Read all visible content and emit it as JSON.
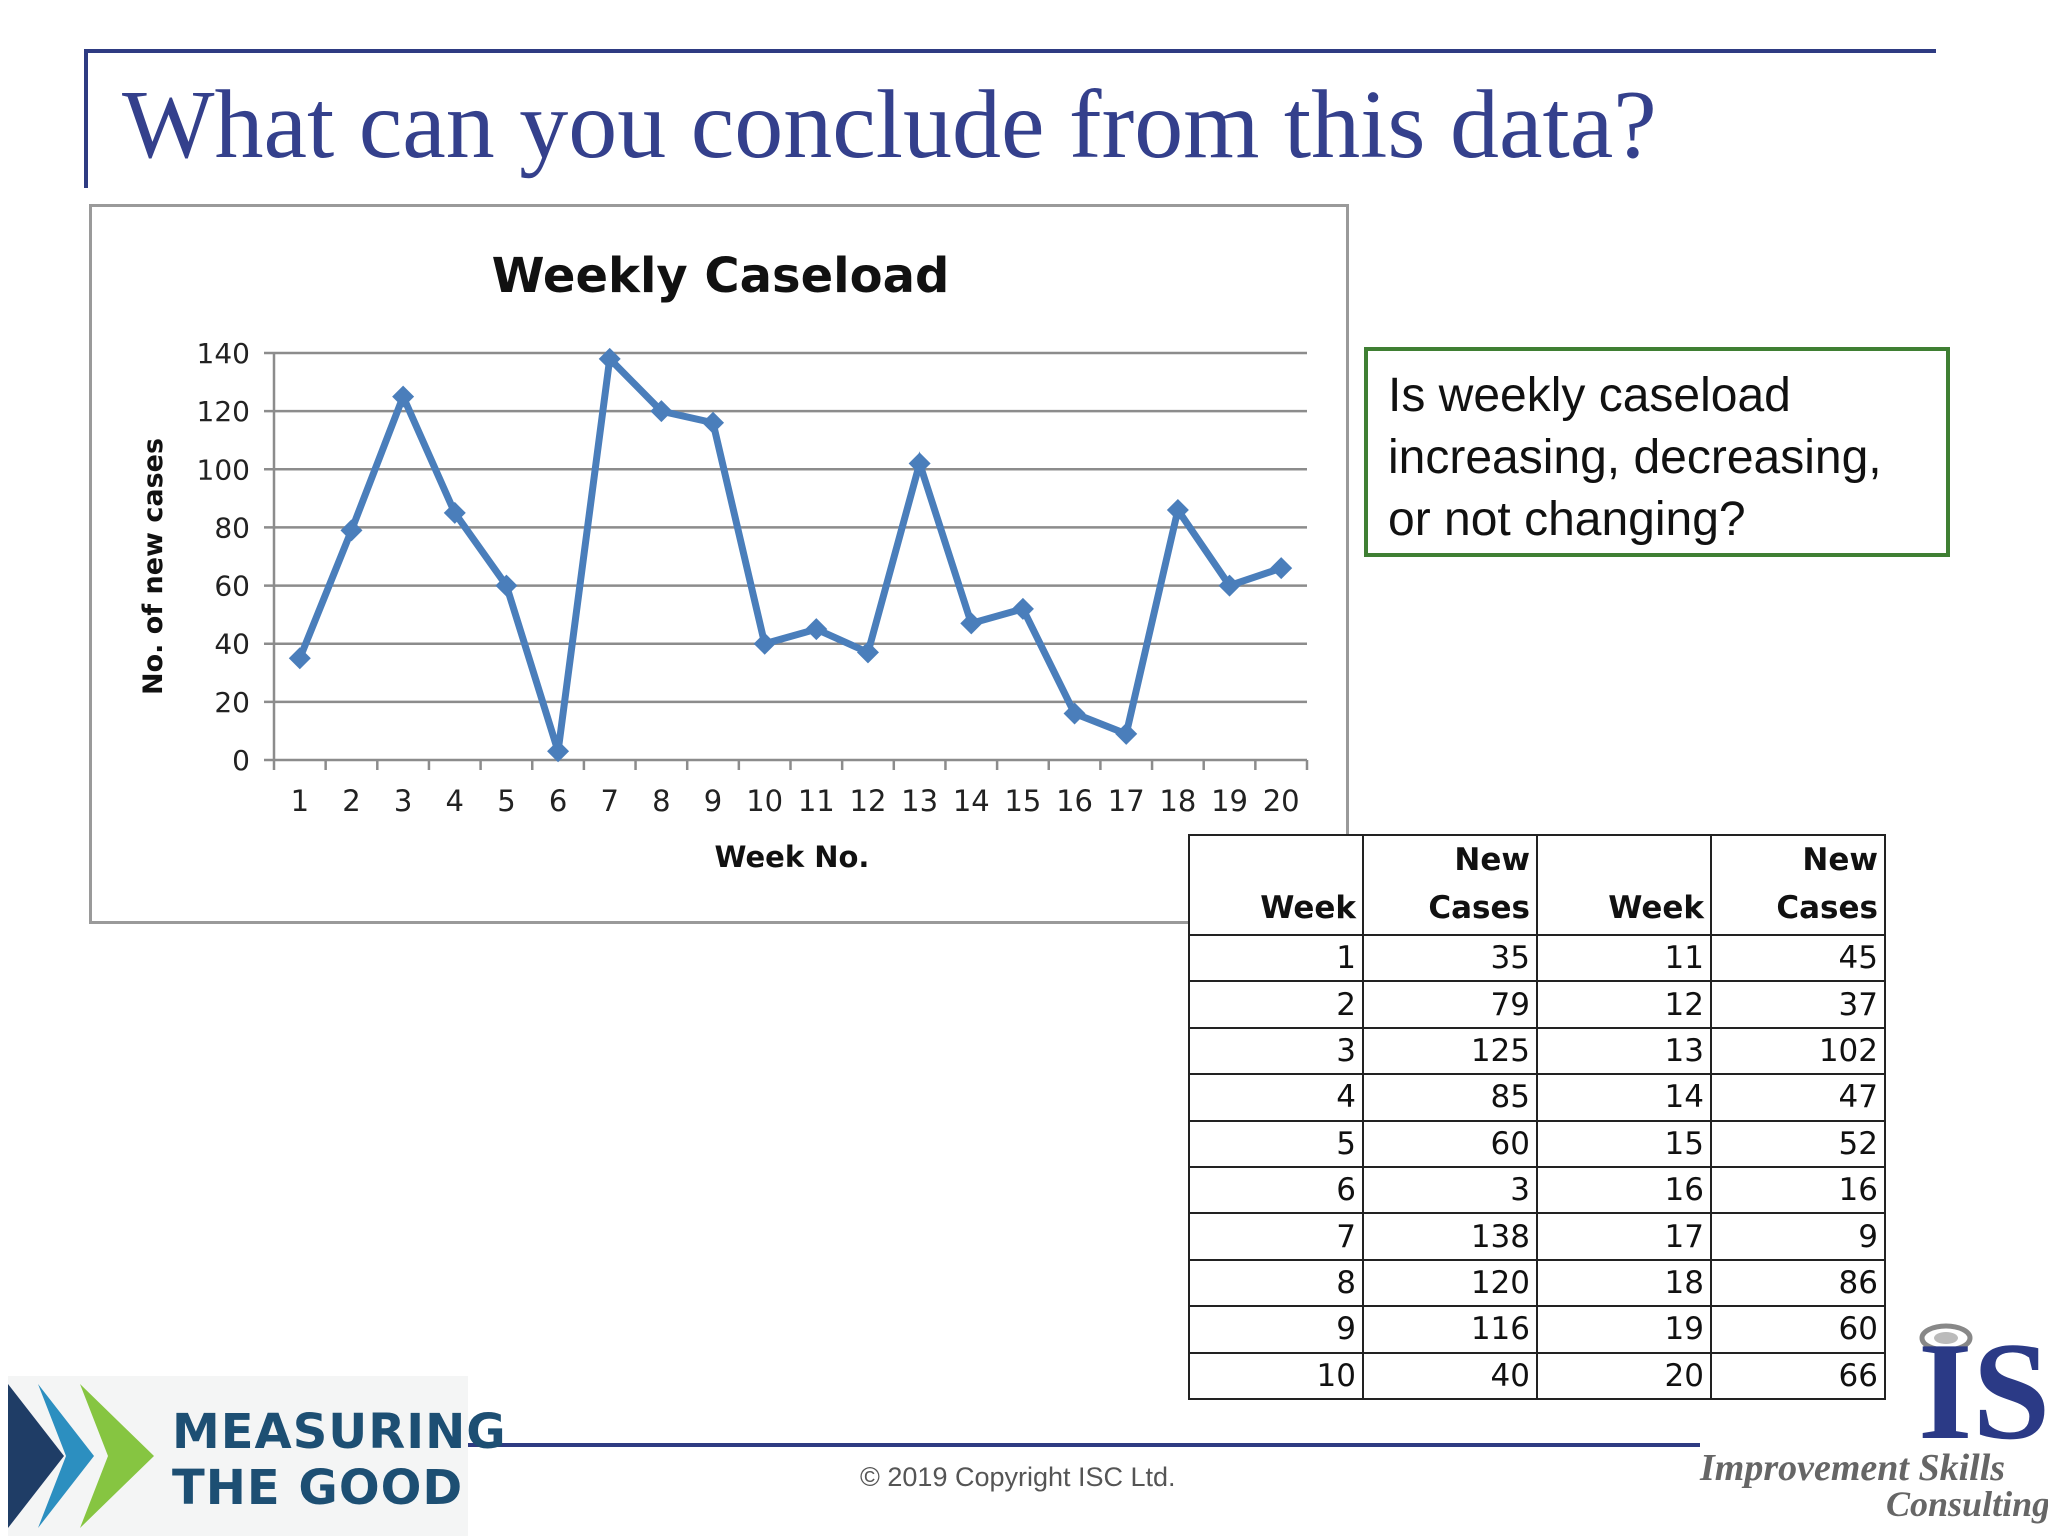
{
  "slide": {
    "title": "What can you conclude from this data?",
    "question": "Is weekly caseload increasing, decreasing, or not changing?",
    "copyright": "© 2019 Copyright ISC Ltd.",
    "logo_left": {
      "line1": "MEASURING",
      "line2": "THE GOOD"
    },
    "logo_right": {
      "mark": "IS",
      "line1": "Improvement Skills",
      "line2": "Consulting"
    }
  },
  "colors": {
    "title": "#34408c",
    "rule": "#2e3b82",
    "series": "#4a7ebb",
    "question_border": "#3f7f33"
  },
  "chart_data": {
    "type": "line",
    "title": "Weekly Caseload",
    "xlabel": "Week No.",
    "ylabel": "No. of new cases",
    "ylim": [
      0,
      140
    ],
    "yticks": [
      0,
      20,
      40,
      60,
      80,
      100,
      120,
      140
    ],
    "grid": true,
    "legend": "none",
    "x": [
      1,
      2,
      3,
      4,
      5,
      6,
      7,
      8,
      9,
      10,
      11,
      12,
      13,
      14,
      15,
      16,
      17,
      18,
      19,
      20
    ],
    "series": [
      {
        "values": [
          35,
          79,
          125,
          85,
          60,
          3,
          138,
          120,
          116,
          40,
          45,
          37,
          102,
          47,
          52,
          16,
          9,
          86,
          60,
          66
        ]
      }
    ]
  },
  "table": {
    "headers": [
      [
        "",
        "Week"
      ],
      [
        "New",
        "Cases"
      ],
      [
        "",
        "Week"
      ],
      [
        "New",
        "Cases"
      ]
    ],
    "rows": [
      [
        "1",
        "35",
        "11",
        "45"
      ],
      [
        "2",
        "79",
        "12",
        "37"
      ],
      [
        "3",
        "125",
        "13",
        "102"
      ],
      [
        "4",
        "85",
        "14",
        "47"
      ],
      [
        "5",
        "60",
        "15",
        "52"
      ],
      [
        "6",
        "3",
        "16",
        "16"
      ],
      [
        "7",
        "138",
        "17",
        "9"
      ],
      [
        "8",
        "120",
        "18",
        "86"
      ],
      [
        "9",
        "116",
        "19",
        "60"
      ],
      [
        "10",
        "40",
        "20",
        "66"
      ]
    ]
  }
}
